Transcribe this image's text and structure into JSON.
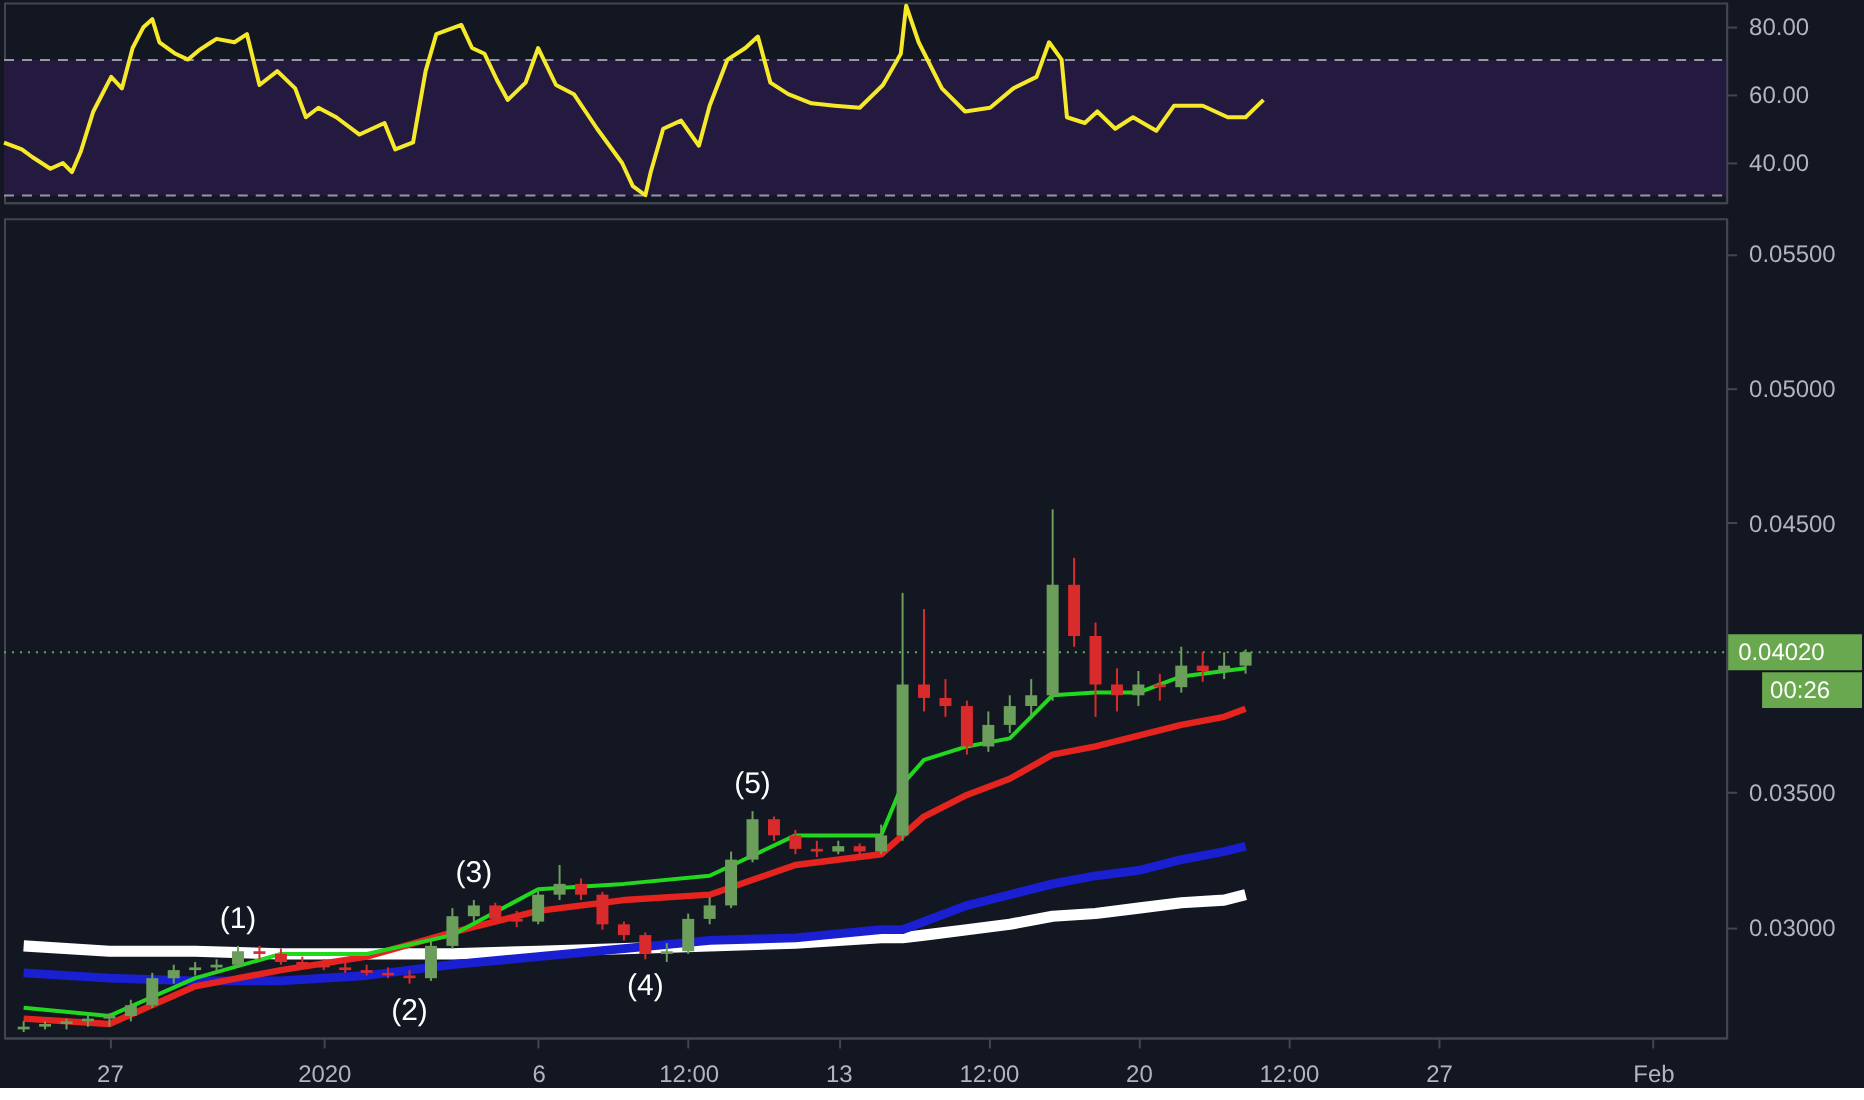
{
  "chart_data": [
    {
      "type": "line",
      "xlim": [
        "2019-12-24T13:00",
        "2020-02-02T17:00"
      ],
      "ylim": [
        28,
        86.9
      ],
      "yticks": [
        {
          "value": 40,
          "label": "40.00"
        },
        {
          "value": 60,
          "label": "60.00"
        },
        {
          "value": 80,
          "label": "80.00"
        }
      ],
      "tick_labels": "y",
      "x": [
        "2019-12-24T13:00",
        "2019-12-24T23:00",
        "2019-12-25T05:00",
        "2019-12-25T15:00",
        "2019-12-25T22:00",
        "2019-12-26T03:00",
        "2019-12-26T08:00",
        "2019-12-26T15:00",
        "2019-12-27T01:00",
        "2019-12-27T07:00",
        "2019-12-27T13:00",
        "2019-12-27T19:00",
        "2019-12-28T00:00",
        "2019-12-28T04:00",
        "2019-12-28T13:00",
        "2019-12-28T20:00",
        "2019-12-29T02:00",
        "2019-12-29T09:00",
        "2019-12-29T12:00",
        "2019-12-29T22:00",
        "2019-12-30T05:00",
        "2019-12-30T12:00",
        "2019-12-30T22:00",
        "2019-12-31T08:00",
        "2019-12-31T14:00",
        "2019-12-31T21:00",
        "2020-01-01T07:00",
        "2020-01-01T20:00",
        "2020-01-02T10:00",
        "2020-01-02T16:00",
        "2020-01-03T02:00",
        "2020-01-03T09:00",
        "2020-01-03T15:00",
        "2020-01-04T05:00",
        "2020-01-04T11:00",
        "2020-01-04T18:00",
        "2020-01-05T01:00",
        "2020-01-05T07:00",
        "2020-01-05T17:00",
        "2020-01-06T00:00",
        "2020-01-06T10:00",
        "2020-01-06T20:00",
        "2020-01-07T09:00",
        "2020-01-07T23:00",
        "2020-01-08T05:00",
        "2020-01-08T12:00",
        "2020-01-08T15:00",
        "2020-01-08T22:00",
        "2020-01-09T08:00",
        "2020-01-09T18:00",
        "2020-01-10T00:00",
        "2020-01-10T10:00",
        "2020-01-10T20:00",
        "2020-01-11T03:00",
        "2020-01-11T10:00",
        "2020-01-11T20:00",
        "2020-01-12T09:00",
        "2020-01-12T22:00",
        "2020-01-13T12:00",
        "2020-01-14T01:00",
        "2020-01-14T11:00",
        "2020-01-14T14:00",
        "2020-01-14T21:00",
        "2020-01-15T10:00",
        "2020-01-15T23:00",
        "2020-01-16T13:00",
        "2020-01-17T02:00",
        "2020-01-17T15:00",
        "2020-01-17T22:00",
        "2020-01-18T05:00",
        "2020-01-18T08:00",
        "2020-01-18T18:00",
        "2020-01-19T01:00",
        "2020-01-19T11:00",
        "2020-01-19T21:00",
        "2020-01-20T10:00",
        "2020-01-20T20:00",
        "2020-01-21T12:00",
        "2020-01-22T02:00",
        "2020-01-22T12:00",
        "2020-01-22T22:00"
      ],
      "series": [
        {
          "color": "#f5e92a",
          "values": [
            45.6,
            43.6,
            41.3,
            37.9,
            39.6,
            36.9,
            43.0,
            54.8,
            65.0,
            61.6,
            73.5,
            79.6,
            82.0,
            75.2,
            71.8,
            70.1,
            72.8,
            75.2,
            76.2,
            75.2,
            77.6,
            62.6,
            66.7,
            61.6,
            53.1,
            55.9,
            53.1,
            48.0,
            51.4,
            43.6,
            45.7,
            66.7,
            77.6,
            80.3,
            73.5,
            71.8,
            64.0,
            58.2,
            63.3,
            73.5,
            62.6,
            59.9,
            49.7,
            39.6,
            32.8,
            30.1,
            36.9,
            49.7,
            52.1,
            44.7,
            56.5,
            70.1,
            73.5,
            76.9,
            63.3,
            59.9,
            57.2,
            56.5,
            55.9,
            62.6,
            71.8,
            86.0,
            75.2,
            61.6,
            54.8,
            55.9,
            61.6,
            65.0,
            75.2,
            70.1,
            53.1,
            51.4,
            54.8,
            49.7,
            53.1,
            49.1,
            56.5,
            56.5,
            53.1,
            53.1,
            58.2
          ]
        }
      ],
      "bands": [
        {
          "axis": "y",
          "from": 30,
          "to": 70,
          "color": "#24193f"
        }
      ],
      "ref_lines": [
        {
          "axis": "y",
          "value": 70,
          "color": "#9598a1",
          "line_style": "dashed"
        },
        {
          "axis": "y",
          "value": 30,
          "color": "#9598a1",
          "line_style": "dashed"
        }
      ]
    },
    {
      "type": "candlestick",
      "xlim": [
        "2019-12-24T13:00",
        "2020-02-02T17:00"
      ],
      "ylim": [
        0.0259,
        0.0563
      ],
      "yticks": [
        {
          "value": 0.03,
          "label": "0.03000"
        },
        {
          "value": 0.035,
          "label": "0.03500"
        },
        {
          "value": 0.045,
          "label": "0.04500"
        },
        {
          "value": 0.05,
          "label": "0.05000"
        },
        {
          "value": 0.055,
          "label": "0.05500"
        }
      ],
      "xticks": [
        {
          "value": "2019-12-27T00:00",
          "label": "27"
        },
        {
          "value": "2020-01-01T00:00",
          "label": "2020"
        },
        {
          "value": "2020-01-06T00:00",
          "label": "6"
        },
        {
          "value": "2020-01-09T12:00",
          "label": "12:00"
        },
        {
          "value": "2020-01-13T00:00",
          "label": "13"
        },
        {
          "value": "2020-01-16T12:00",
          "label": "12:00"
        },
        {
          "value": "2020-01-20T00:00",
          "label": "20"
        },
        {
          "value": "2020-01-23T12:00",
          "label": "12:00"
        },
        {
          "value": "2020-01-27T00:00",
          "label": "27"
        },
        {
          "value": "2020-02-01T00:00",
          "label": "Feb"
        }
      ],
      "x": [
        "2019-12-25T00:00",
        "2019-12-25T12:00",
        "2019-12-26T00:00",
        "2019-12-26T12:00",
        "2019-12-27T00:00",
        "2019-12-27T12:00",
        "2019-12-28T00:00",
        "2019-12-28T12:00",
        "2019-12-29T00:00",
        "2019-12-29T12:00",
        "2019-12-30T00:00",
        "2019-12-30T12:00",
        "2019-12-31T00:00",
        "2019-12-31T12:00",
        "2020-01-01T00:00",
        "2020-01-01T12:00",
        "2020-01-02T00:00",
        "2020-01-02T12:00",
        "2020-01-03T00:00",
        "2020-01-03T12:00",
        "2020-01-04T00:00",
        "2020-01-04T12:00",
        "2020-01-05T00:00",
        "2020-01-05T12:00",
        "2020-01-06T00:00",
        "2020-01-06T12:00",
        "2020-01-07T00:00",
        "2020-01-07T12:00",
        "2020-01-08T00:00",
        "2020-01-08T12:00",
        "2020-01-09T00:00",
        "2020-01-09T12:00",
        "2020-01-10T00:00",
        "2020-01-10T12:00",
        "2020-01-11T00:00",
        "2020-01-11T12:00",
        "2020-01-12T00:00",
        "2020-01-12T12:00",
        "2020-01-13T00:00",
        "2020-01-13T12:00",
        "2020-01-14T00:00",
        "2020-01-14T12:00",
        "2020-01-15T00:00",
        "2020-01-15T12:00",
        "2020-01-16T00:00",
        "2020-01-16T12:00",
        "2020-01-17T00:00",
        "2020-01-17T12:00",
        "2020-01-18T00:00",
        "2020-01-18T12:00",
        "2020-01-19T00:00",
        "2020-01-19T12:00",
        "2020-01-20T00:00",
        "2020-01-20T12:00",
        "2020-01-21T00:00",
        "2020-01-21T12:00",
        "2020-01-22T00:00",
        "2020-01-22T12:00"
      ],
      "ohlc": [
        [
          0.0262,
          0.0265,
          0.0261,
          0.0263
        ],
        [
          0.0263,
          0.0265,
          0.0262,
          0.0264
        ],
        [
          0.0264,
          0.0266,
          0.0262,
          0.0265
        ],
        [
          0.0265,
          0.0267,
          0.0263,
          0.0266
        ],
        [
          0.0266,
          0.0268,
          0.0263,
          0.0267
        ],
        [
          0.0267,
          0.0273,
          0.0265,
          0.0271
        ],
        [
          0.0271,
          0.0283,
          0.027,
          0.0281
        ],
        [
          0.0281,
          0.0286,
          0.0279,
          0.0284
        ],
        [
          0.0284,
          0.0287,
          0.0282,
          0.0285
        ],
        [
          0.0285,
          0.0288,
          0.0283,
          0.0286
        ],
        [
          0.0286,
          0.0293,
          0.0285,
          0.0291
        ],
        [
          0.0291,
          0.0293,
          0.0288,
          0.029
        ],
        [
          0.029,
          0.0292,
          0.0286,
          0.0287
        ],
        [
          0.0287,
          0.0289,
          0.0285,
          0.0286
        ],
        [
          0.0286,
          0.0288,
          0.0284,
          0.0285
        ],
        [
          0.0285,
          0.0287,
          0.0283,
          0.0284
        ],
        [
          0.0284,
          0.0286,
          0.0282,
          0.0283
        ],
        [
          0.0283,
          0.0285,
          0.0281,
          0.0282
        ],
        [
          0.0282,
          0.0284,
          0.0279,
          0.0281
        ],
        [
          0.0281,
          0.0295,
          0.028,
          0.0293
        ],
        [
          0.0293,
          0.0307,
          0.0292,
          0.0304
        ],
        [
          0.0304,
          0.031,
          0.0302,
          0.0308
        ],
        [
          0.0308,
          0.0309,
          0.0302,
          0.0303
        ],
        [
          0.0303,
          0.0306,
          0.03,
          0.0302
        ],
        [
          0.0302,
          0.0314,
          0.0301,
          0.0312
        ],
        [
          0.0312,
          0.0323,
          0.031,
          0.0316
        ],
        [
          0.0316,
          0.0318,
          0.031,
          0.0312
        ],
        [
          0.0312,
          0.0313,
          0.0299,
          0.0301
        ],
        [
          0.0301,
          0.0302,
          0.0295,
          0.0297
        ],
        [
          0.0297,
          0.0298,
          0.0288,
          0.029
        ],
        [
          0.029,
          0.0294,
          0.0287,
          0.0291
        ],
        [
          0.0291,
          0.0305,
          0.029,
          0.0303
        ],
        [
          0.0303,
          0.0311,
          0.0301,
          0.0308
        ],
        [
          0.0308,
          0.0328,
          0.0307,
          0.0325
        ],
        [
          0.0325,
          0.0343,
          0.0324,
          0.034
        ],
        [
          0.034,
          0.0341,
          0.0332,
          0.0334
        ],
        [
          0.0334,
          0.0336,
          0.0327,
          0.0329
        ],
        [
          0.0329,
          0.0332,
          0.0326,
          0.0328
        ],
        [
          0.0328,
          0.0332,
          0.0327,
          0.033
        ],
        [
          0.033,
          0.0331,
          0.0326,
          0.0328
        ],
        [
          0.0328,
          0.0338,
          0.0327,
          0.0334
        ],
        [
          0.0334,
          0.0424,
          0.0332,
          0.039
        ],
        [
          0.039,
          0.0418,
          0.038,
          0.0385
        ],
        [
          0.0385,
          0.0392,
          0.0378,
          0.0382
        ],
        [
          0.0382,
          0.0384,
          0.0364,
          0.0367
        ],
        [
          0.0367,
          0.038,
          0.0365,
          0.0375
        ],
        [
          0.0375,
          0.0386,
          0.0372,
          0.0382
        ],
        [
          0.0382,
          0.0392,
          0.0378,
          0.0386
        ],
        [
          0.0386,
          0.0455,
          0.0384,
          0.0427
        ],
        [
          0.0427,
          0.0437,
          0.0404,
          0.0408
        ],
        [
          0.0408,
          0.0413,
          0.0378,
          0.039
        ],
        [
          0.039,
          0.0396,
          0.038,
          0.0386
        ],
        [
          0.0386,
          0.0395,
          0.0382,
          0.039
        ],
        [
          0.039,
          0.0394,
          0.0384,
          0.0389
        ],
        [
          0.0389,
          0.0404,
          0.0387,
          0.0397
        ],
        [
          0.0397,
          0.0402,
          0.0391,
          0.0395
        ],
        [
          0.0395,
          0.0402,
          0.0392,
          0.0397
        ],
        [
          0.0397,
          0.0403,
          0.0394,
          0.0402
        ]
      ],
      "series": [
        {
          "type": "line",
          "color": "#ffffff",
          "x": [
            "2019-12-25T00:00",
            "2019-12-27T00:00",
            "2019-12-29T00:00",
            "2019-12-31T00:00",
            "2020-01-02T00:00",
            "2020-01-04T00:00",
            "2020-01-06T00:00",
            "2020-01-08T00:00",
            "2020-01-10T00:00",
            "2020-01-12T00:00",
            "2020-01-14T00:00",
            "2020-01-14T12:00",
            "2020-01-15T00:00",
            "2020-01-16T00:00",
            "2020-01-17T00:00",
            "2020-01-18T00:00",
            "2020-01-19T00:00",
            "2020-01-20T00:00",
            "2020-01-21T00:00",
            "2020-01-22T00:00",
            "2020-01-22T12:00"
          ],
          "values": [
            0.0293,
            0.0291,
            0.0291,
            0.029,
            0.029,
            0.029,
            0.0291,
            0.0292,
            0.0293,
            0.0294,
            0.0296,
            0.0296,
            0.0297,
            0.0299,
            0.0301,
            0.0304,
            0.0305,
            0.0307,
            0.0309,
            0.031,
            0.0312
          ]
        },
        {
          "type": "line",
          "color": "#1a1fd1",
          "x": [
            "2019-12-25T00:00",
            "2019-12-27T00:00",
            "2019-12-29T00:00",
            "2019-12-31T00:00",
            "2020-01-02T00:00",
            "2020-01-04T00:00",
            "2020-01-06T00:00",
            "2020-01-08T00:00",
            "2020-01-10T00:00",
            "2020-01-12T00:00",
            "2020-01-14T00:00",
            "2020-01-14T12:00",
            "2020-01-15T00:00",
            "2020-01-16T00:00",
            "2020-01-17T00:00",
            "2020-01-18T00:00",
            "2020-01-19T00:00",
            "2020-01-20T00:00",
            "2020-01-21T00:00",
            "2020-01-22T00:00",
            "2020-01-22T12:00"
          ],
          "values": [
            0.0283,
            0.0281,
            0.028,
            0.028,
            0.0282,
            0.0286,
            0.0289,
            0.0292,
            0.0295,
            0.0296,
            0.0299,
            0.0299,
            0.0302,
            0.0308,
            0.0312,
            0.0316,
            0.0319,
            0.0321,
            0.0325,
            0.0328,
            0.033
          ]
        },
        {
          "type": "line",
          "color": "#e5241f",
          "x": [
            "2019-12-25T00:00",
            "2019-12-27T00:00",
            "2019-12-29T00:00",
            "2019-12-31T00:00",
            "2020-01-02T00:00",
            "2020-01-04T00:00",
            "2020-01-06T00:00",
            "2020-01-08T00:00",
            "2020-01-10T00:00",
            "2020-01-12T00:00",
            "2020-01-14T00:00",
            "2020-01-14T12:00",
            "2020-01-15T00:00",
            "2020-01-16T00:00",
            "2020-01-17T00:00",
            "2020-01-18T00:00",
            "2020-01-19T00:00",
            "2020-01-20T00:00",
            "2020-01-21T00:00",
            "2020-01-22T00:00",
            "2020-01-22T12:00"
          ],
          "values": [
            0.0266,
            0.0264,
            0.0278,
            0.0284,
            0.0289,
            0.0298,
            0.0306,
            0.031,
            0.0312,
            0.0323,
            0.0327,
            0.0334,
            0.0341,
            0.0349,
            0.0355,
            0.0364,
            0.0367,
            0.0371,
            0.0375,
            0.0378,
            0.0381
          ]
        },
        {
          "type": "line",
          "color": "#22d81e",
          "x": [
            "2019-12-25T00:00",
            "2019-12-27T00:00",
            "2019-12-29T00:00",
            "2019-12-31T00:00",
            "2020-01-02T00:00",
            "2020-01-04T00:00",
            "2020-01-06T00:00",
            "2020-01-08T00:00",
            "2020-01-10T00:00",
            "2020-01-12T00:00",
            "2020-01-14T00:00",
            "2020-01-14T12:00",
            "2020-01-15T00:00",
            "2020-01-16T00:00",
            "2020-01-17T00:00",
            "2020-01-18T00:00",
            "2020-01-19T00:00",
            "2020-01-20T00:00",
            "2020-01-21T00:00",
            "2020-01-22T00:00",
            "2020-01-22T12:00"
          ],
          "values": [
            0.027,
            0.0267,
            0.0281,
            0.029,
            0.029,
            0.0297,
            0.0314,
            0.0316,
            0.0319,
            0.0334,
            0.0334,
            0.0353,
            0.0362,
            0.0367,
            0.037,
            0.0386,
            0.0387,
            0.0387,
            0.0393,
            0.0395,
            0.0396
          ]
        }
      ],
      "ref_lines": [
        {
          "axis": "y",
          "value": 0.0402,
          "label": "0.04020",
          "color": "#6aa84f",
          "line_style": "dotted"
        }
      ],
      "annotations": [
        {
          "text": "(1)",
          "x": "2019-12-30T00:00",
          "y": 0.0293
        },
        {
          "text": "(2)",
          "x": "2020-01-03T00:00",
          "y": 0.0279
        },
        {
          "text": "(3)",
          "x": "2020-01-04T12:00",
          "y": 0.031
        },
        {
          "text": "(4)",
          "x": "2020-01-08T12:00",
          "y": 0.0288
        },
        {
          "text": "(5)",
          "x": "2020-01-11T00:00",
          "y": 0.0343
        },
        "00:26"
      ]
    }
  ]
}
